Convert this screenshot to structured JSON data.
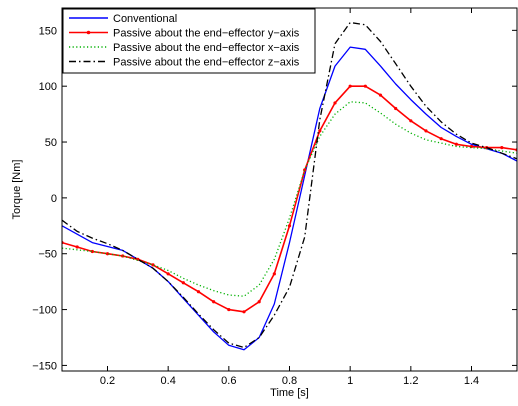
{
  "chart_data": {
    "type": "line",
    "xlabel": "Time [s]",
    "ylabel": "Torque [Nm]",
    "xlim": [
      0.05,
      1.55
    ],
    "ylim": [
      -155,
      170
    ],
    "xticks": [
      0.2,
      0.4,
      0.6,
      0.8,
      1,
      1.2,
      1.4
    ],
    "xtick_labels": [
      "0.2",
      "0.4",
      "0.6",
      "0.8",
      "1",
      "1.2",
      "1.4"
    ],
    "yticks": [
      -150,
      -100,
      -50,
      0,
      50,
      100,
      150
    ],
    "ytick_labels": [
      "−150",
      "−100",
      "−50",
      "0",
      "50",
      "100",
      "150"
    ],
    "grid": false,
    "legend_position": "top-left",
    "series": [
      {
        "name": "Conventional",
        "color": "#0000ff",
        "style": "solid",
        "x": [
          0.05,
          0.15,
          0.25,
          0.3,
          0.35,
          0.4,
          0.45,
          0.5,
          0.55,
          0.6,
          0.65,
          0.7,
          0.75,
          0.8,
          0.85,
          0.9,
          0.95,
          1.0,
          1.05,
          1.1,
          1.15,
          1.2,
          1.25,
          1.3,
          1.35,
          1.4,
          1.45,
          1.5,
          1.55
        ],
        "y": [
          -25,
          -40,
          -47,
          -55,
          -63,
          -75,
          -90,
          -105,
          -120,
          -132,
          -136,
          -125,
          -95,
          -40,
          20,
          80,
          118,
          135,
          133,
          118,
          102,
          88,
          75,
          63,
          55,
          48,
          44,
          40,
          33
        ]
      },
      {
        "name": "Passive about the end−effector y−axis",
        "color": "#ff0000",
        "style": "solid-marker",
        "x": [
          0.05,
          0.1,
          0.15,
          0.2,
          0.25,
          0.3,
          0.35,
          0.4,
          0.45,
          0.5,
          0.55,
          0.6,
          0.65,
          0.7,
          0.75,
          0.8,
          0.85,
          0.9,
          0.95,
          1.0,
          1.05,
          1.1,
          1.15,
          1.2,
          1.25,
          1.3,
          1.35,
          1.4,
          1.45,
          1.5,
          1.55
        ],
        "y": [
          -40,
          -44,
          -48,
          -50,
          -52,
          -55,
          -60,
          -68,
          -76,
          -84,
          -93,
          -100,
          -102,
          -93,
          -68,
          -25,
          25,
          60,
          85,
          100,
          100,
          92,
          80,
          69,
          60,
          53,
          48,
          46,
          45,
          45,
          43
        ]
      },
      {
        "name": "Passive about the end−effector x−axis",
        "color": "#00b000",
        "style": "dotted",
        "x": [
          0.05,
          0.15,
          0.25,
          0.3,
          0.35,
          0.4,
          0.45,
          0.5,
          0.55,
          0.6,
          0.65,
          0.7,
          0.75,
          0.8,
          0.85,
          0.9,
          0.95,
          1.0,
          1.05,
          1.1,
          1.15,
          1.2,
          1.25,
          1.3,
          1.35,
          1.4,
          1.45,
          1.5,
          1.55
        ],
        "y": [
          -45,
          -48,
          -52,
          -56,
          -60,
          -65,
          -72,
          -78,
          -83,
          -87,
          -88,
          -78,
          -55,
          -18,
          25,
          55,
          75,
          86,
          85,
          76,
          66,
          58,
          52,
          49,
          46,
          45,
          44,
          42,
          40
        ]
      },
      {
        "name": "Passive about the end−effector z−axis",
        "color": "#000000",
        "style": "dashdot",
        "x": [
          0.05,
          0.1,
          0.15,
          0.2,
          0.25,
          0.3,
          0.35,
          0.4,
          0.45,
          0.5,
          0.55,
          0.6,
          0.65,
          0.7,
          0.75,
          0.8,
          0.85,
          0.9,
          0.95,
          1.0,
          1.05,
          1.1,
          1.15,
          1.2,
          1.25,
          1.3,
          1.35,
          1.4,
          1.45,
          1.5,
          1.55
        ],
        "y": [
          -20,
          -30,
          -36,
          -41,
          -47,
          -55,
          -63,
          -75,
          -89,
          -104,
          -118,
          -130,
          -134,
          -125,
          -105,
          -80,
          -35,
          70,
          138,
          157,
          155,
          140,
          120,
          100,
          82,
          68,
          57,
          49,
          45,
          40,
          35
        ]
      }
    ]
  }
}
